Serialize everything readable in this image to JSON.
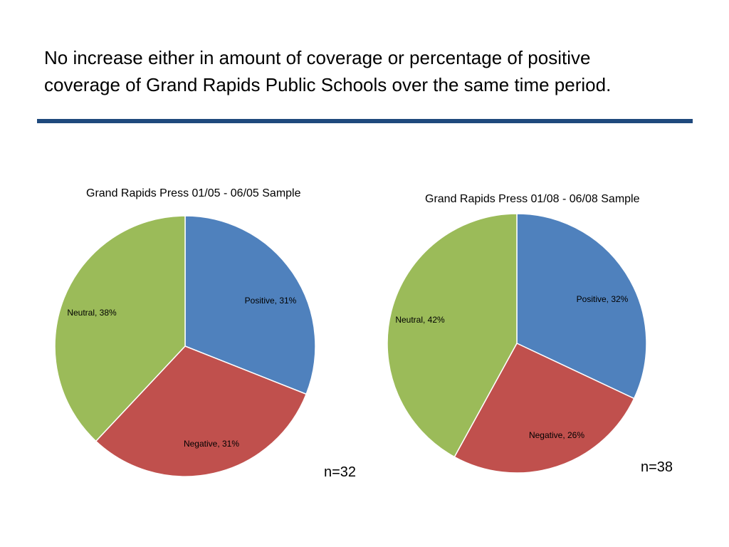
{
  "slide": {
    "title_lines": [
      "No increase either in amount of coverage or percentage of positive",
      "coverage of Grand Rapids Public Schools over the same time period."
    ]
  },
  "colors": {
    "positive": "#4f81bd",
    "negative": "#c0504d",
    "neutral": "#9bbb59",
    "rule": "#1f497d"
  },
  "chart_data": [
    {
      "type": "pie",
      "title": "Grand Rapids Press 01/05 - 06/05 Sample",
      "labels": [
        "Positive",
        "Negative",
        "Neutral"
      ],
      "values": [
        31,
        31,
        38
      ],
      "data_labels": [
        "Positive, 31%",
        "Negative, 31%",
        "Neutral, 38%"
      ],
      "colors": [
        "#4f81bd",
        "#c0504d",
        "#9bbb59"
      ],
      "n_label": "n=32"
    },
    {
      "type": "pie",
      "title": "Grand Rapids Press 01/08 - 06/08 Sample",
      "labels": [
        "Positive",
        "Negative",
        "Neutral"
      ],
      "values": [
        32,
        26,
        42
      ],
      "data_labels": [
        "Positive, 32%",
        "Negative, 26%",
        "Neutral, 42%"
      ],
      "colors": [
        "#4f81bd",
        "#c0504d",
        "#9bbb59"
      ],
      "n_label": "n=38"
    }
  ]
}
